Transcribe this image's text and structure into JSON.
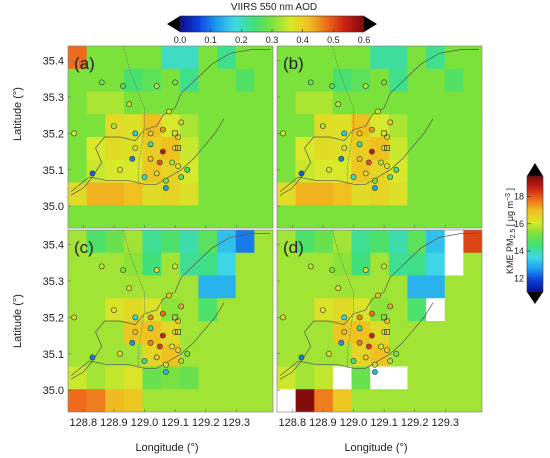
{
  "chart_data": {
    "type": "heatmap",
    "top_colorbar": {
      "title": "VIIRS 550 nm AOD",
      "ticks": [
        "0.0",
        "0.1",
        "0.2",
        "0.3",
        "0.4",
        "0.5",
        "0.6"
      ],
      "range": [
        0.0,
        0.6
      ],
      "colors": [
        "#0a0f8c",
        "#0b3fe0",
        "#1e9cf0",
        "#3fd9e6",
        "#3fe07a",
        "#7be23c",
        "#d8e82a",
        "#f0c020",
        "#ee6a1c",
        "#c81e12",
        "#7a0b0b"
      ]
    },
    "right_colorbar": {
      "title": "KME PM",
      "subscript": "2.5",
      "unit": " [ μg m",
      "superscript": "−3",
      "unit_end": " ]",
      "ticks": [
        "12",
        "14",
        "16",
        "18"
      ],
      "range": [
        11,
        19.5
      ],
      "colors": [
        "#0a0f8c",
        "#0b3fe0",
        "#1e9cf0",
        "#3fd9e6",
        "#3fe07a",
        "#7be23c",
        "#d8e82a",
        "#f0c020",
        "#ee6a1c",
        "#c81e12",
        "#7a0b0b"
      ]
    },
    "xlabel": "Longitude (°)",
    "ylabel": "Latitude (°)",
    "xticks": [
      "128.8",
      "128.9",
      "129.0",
      "129.1",
      "129.2",
      "129.3"
    ],
    "yticks": [
      "35.4",
      "35.3",
      "35.2",
      "35.1",
      "35.0"
    ],
    "xlim": [
      128.75,
      129.42
    ],
    "ylim": [
      34.94,
      35.44
    ],
    "panels": [
      {
        "label": "(a)",
        "colorbar": "aod",
        "default_value": 0.3,
        "cells": [
          [
            0,
            0,
            0.48
          ],
          [
            5,
            0,
            0.2
          ],
          [
            6,
            0,
            0.2
          ],
          [
            8,
            0,
            0.23
          ],
          [
            3,
            1,
            0.25
          ],
          [
            4,
            1,
            0.27
          ],
          [
            6,
            1,
            0.23
          ],
          [
            9,
            1,
            0.26
          ],
          [
            1,
            2,
            0.33
          ],
          [
            2,
            2,
            0.33
          ],
          [
            2,
            3,
            0.38
          ],
          [
            3,
            3,
            0.37
          ],
          [
            4,
            3,
            0.42
          ],
          [
            5,
            3,
            0.36
          ],
          [
            6,
            3,
            0.33
          ],
          [
            1,
            4,
            0.36
          ],
          [
            2,
            4,
            0.38
          ],
          [
            3,
            4,
            0.37
          ],
          [
            4,
            4,
            0.4
          ],
          [
            5,
            4,
            0.42
          ],
          [
            6,
            4,
            0.35
          ],
          [
            1,
            5,
            0.35
          ],
          [
            2,
            5,
            0.36
          ],
          [
            3,
            5,
            0.36
          ],
          [
            4,
            5,
            0.41
          ],
          [
            5,
            5,
            0.39
          ],
          [
            6,
            5,
            0.36
          ],
          [
            0,
            6,
            0.38
          ],
          [
            1,
            6,
            0.43
          ],
          [
            2,
            6,
            0.43
          ],
          [
            3,
            6,
            0.42
          ],
          [
            4,
            6,
            0.38
          ],
          [
            5,
            6,
            0.39
          ],
          [
            6,
            6,
            0.37
          ]
        ]
      },
      {
        "label": "(b)",
        "colorbar": "aod",
        "default_value": 0.3,
        "cells": [
          [
            5,
            0,
            0.22
          ],
          [
            6,
            0,
            0.22
          ],
          [
            8,
            0,
            0.23
          ],
          [
            3,
            1,
            0.25
          ],
          [
            4,
            1,
            0.27
          ],
          [
            6,
            1,
            0.23
          ],
          [
            9,
            1,
            0.26
          ],
          [
            1,
            2,
            0.33
          ],
          [
            2,
            2,
            0.33
          ],
          [
            2,
            3,
            0.38
          ],
          [
            3,
            3,
            0.37
          ],
          [
            4,
            3,
            0.42
          ],
          [
            5,
            3,
            0.36
          ],
          [
            6,
            3,
            0.33
          ],
          [
            1,
            4,
            0.36
          ],
          [
            2,
            4,
            0.38
          ],
          [
            3,
            4,
            0.37
          ],
          [
            4,
            4,
            0.4
          ],
          [
            5,
            4,
            0.42
          ],
          [
            6,
            4,
            0.35
          ],
          [
            1,
            5,
            0.35
          ],
          [
            2,
            5,
            0.36
          ],
          [
            3,
            5,
            0.36
          ],
          [
            4,
            5,
            0.41
          ],
          [
            5,
            5,
            0.39
          ],
          [
            6,
            5,
            0.36
          ],
          [
            0,
            6,
            0.38
          ],
          [
            1,
            6,
            0.43
          ],
          [
            2,
            6,
            0.43
          ],
          [
            3,
            6,
            0.42
          ],
          [
            4,
            6,
            0.38
          ],
          [
            5,
            6,
            0.39
          ],
          [
            6,
            6,
            0.37
          ]
        ]
      },
      {
        "label": "(c)",
        "colorbar": "pm",
        "default_value": 15.6,
        "cells": [
          [
            1,
            0,
            14.6
          ],
          [
            2,
            0,
            15
          ],
          [
            4,
            0,
            14.2
          ],
          [
            5,
            0,
            14.6
          ],
          [
            6,
            0,
            14
          ],
          [
            7,
            0,
            14.8
          ],
          [
            8,
            0,
            13.2
          ],
          [
            9,
            0,
            12.4
          ],
          [
            3,
            1,
            15.4
          ],
          [
            4,
            1,
            14.4
          ],
          [
            6,
            1,
            14.2
          ],
          [
            7,
            1,
            14.3
          ],
          [
            8,
            1,
            13.5
          ],
          [
            7,
            2,
            13
          ],
          [
            8,
            2,
            13
          ],
          [
            2,
            3,
            16.2
          ],
          [
            3,
            3,
            16.4
          ],
          [
            4,
            3,
            16.2
          ],
          [
            5,
            3,
            15.4
          ],
          [
            7,
            3,
            14.6
          ],
          [
            3,
            4,
            16.8
          ],
          [
            4,
            4,
            16.9
          ],
          [
            5,
            4,
            16.4
          ],
          [
            4,
            5,
            16.5
          ],
          [
            5,
            5,
            16.9
          ],
          [
            0,
            6,
            16
          ],
          [
            2,
            6,
            15.9
          ],
          [
            3,
            6,
            16.2
          ],
          [
            4,
            6,
            15
          ],
          [
            5,
            6,
            15.2
          ],
          [
            6,
            6,
            15
          ],
          [
            0,
            7,
            17.8
          ],
          [
            1,
            7,
            17.6
          ],
          [
            2,
            7,
            17
          ],
          [
            3,
            7,
            16.8
          ]
        ]
      },
      {
        "label": "(d)",
        "colorbar": "pm",
        "default_value": 15.6,
        "cells": [
          [
            1,
            0,
            14.6
          ],
          [
            2,
            0,
            15
          ],
          [
            4,
            0,
            14.2
          ],
          [
            5,
            0,
            14.6
          ],
          [
            6,
            0,
            14
          ],
          [
            7,
            0,
            14.8
          ],
          [
            8,
            0,
            13.2
          ],
          [
            9,
            0,
            12.4
          ],
          [
            10,
            0,
            18.2
          ],
          [
            3,
            1,
            15.4
          ],
          [
            4,
            1,
            14.4
          ],
          [
            6,
            1,
            14.2
          ],
          [
            7,
            1,
            14.3
          ],
          [
            8,
            1,
            13.5
          ],
          [
            7,
            2,
            13
          ],
          [
            8,
            2,
            13
          ],
          [
            2,
            3,
            16.2
          ],
          [
            3,
            3,
            16.4
          ],
          [
            4,
            3,
            16.2
          ],
          [
            5,
            3,
            15.4
          ],
          [
            7,
            3,
            14.6
          ],
          [
            3,
            4,
            16.8
          ],
          [
            4,
            4,
            16.9
          ],
          [
            5,
            4,
            16.4
          ],
          [
            4,
            5,
            16.5
          ],
          [
            5,
            5,
            16.9
          ],
          [
            0,
            6,
            16
          ],
          [
            2,
            6,
            15.9
          ],
          [
            3,
            6,
            16.2
          ],
          [
            4,
            6,
            15
          ],
          [
            5,
            6,
            15.2
          ],
          [
            6,
            6,
            15
          ],
          [
            0,
            7,
            17.2
          ],
          [
            1,
            7,
            19.4
          ],
          [
            2,
            7,
            17.6
          ],
          [
            3,
            7,
            16.8
          ]
        ],
        "blank_cells": [
          [
            9,
            0
          ],
          [
            9,
            1
          ],
          [
            8,
            3
          ],
          [
            0,
            7
          ],
          [
            5,
            6
          ],
          [
            6,
            6
          ],
          [
            3,
            6
          ]
        ]
      }
    ],
    "stations": [
      [
        128.86,
        35.34,
        0.28,
        15.8
      ],
      [
        128.93,
        35.33,
        0.26,
        15.2
      ],
      [
        129.04,
        35.33,
        0.33,
        16.4
      ],
      [
        129.1,
        35.34,
        0.3,
        16
      ],
      [
        128.95,
        35.28,
        0.34,
        16.3
      ],
      [
        129.08,
        35.26,
        0.37,
        16.8
      ],
      [
        129.12,
        35.23,
        0.4,
        17.2
      ],
      [
        128.77,
        35.2,
        0.36,
        16.5
      ],
      [
        128.9,
        35.22,
        0.33,
        16.2
      ],
      [
        128.97,
        35.2,
        0.16,
        13.5
      ],
      [
        129.02,
        35.2,
        0.41,
        17.5
      ],
      [
        129.06,
        35.21,
        0.45,
        17.8
      ],
      [
        129.11,
        35.19,
        0.38,
        16.7
      ],
      [
        128.97,
        35.16,
        0.38,
        17
      ],
      [
        129.02,
        35.17,
        0.22,
        14.4
      ],
      [
        129.06,
        35.15,
        0.55,
        18.6
      ],
      [
        129.1,
        35.16,
        0.35,
        16.4
      ],
      [
        128.96,
        35.13,
        0.1,
        12.6
      ],
      [
        129.02,
        35.13,
        0.42,
        17.6
      ],
      [
        129.05,
        35.12,
        0.5,
        18.3
      ],
      [
        129.09,
        35.12,
        0.33,
        16
      ],
      [
        129.11,
        35.11,
        0.37,
        16.6
      ],
      [
        129.14,
        35.1,
        0.24,
        15.2
      ],
      [
        128.83,
        35.09,
        0.08,
        12.4
      ],
      [
        128.92,
        35.1,
        0.36,
        16.4
      ],
      [
        129.0,
        35.08,
        0.2,
        14.2
      ],
      [
        129.04,
        35.09,
        0.38,
        16.8
      ],
      [
        129.07,
        35.07,
        0.3,
        15.9
      ],
      [
        129.12,
        35.08,
        0.26,
        15.6
      ],
      [
        129.07,
        35.05,
        0.12,
        13
      ]
    ],
    "square_stations": [
      [
        129.1,
        35.2
      ],
      [
        129.11,
        35.16
      ]
    ],
    "coastline": [
      [
        128.76,
        35.03
      ],
      [
        128.8,
        35.05
      ],
      [
        128.83,
        35.08
      ],
      [
        128.86,
        35.12
      ],
      [
        128.84,
        35.16
      ],
      [
        128.87,
        35.19
      ],
      [
        128.92,
        35.19
      ],
      [
        128.97,
        35.18
      ],
      [
        129.0,
        35.21
      ],
      [
        129.04,
        35.22
      ],
      [
        129.06,
        35.25
      ],
      [
        129.1,
        35.27
      ],
      [
        129.12,
        35.31
      ],
      [
        129.17,
        35.35
      ],
      [
        129.22,
        35.39
      ],
      [
        129.28,
        35.42
      ],
      [
        129.35,
        35.43
      ],
      [
        129.41,
        35.43
      ]
    ],
    "south_coast": [
      [
        128.76,
        35.04
      ],
      [
        128.82,
        35.08
      ],
      [
        128.88,
        35.07
      ],
      [
        128.95,
        35.07
      ],
      [
        129.0,
        35.06
      ],
      [
        129.04,
        35.06
      ],
      [
        129.08,
        35.08
      ],
      [
        129.12,
        35.1
      ],
      [
        129.16,
        35.13
      ],
      [
        129.2,
        35.17
      ],
      [
        129.23,
        35.2
      ],
      [
        129.26,
        35.24
      ]
    ],
    "river": [
      [
        128.93,
        35.44
      ],
      [
        128.95,
        35.38
      ],
      [
        128.98,
        35.31
      ],
      [
        129.0,
        35.27
      ],
      [
        129.0,
        35.22
      ],
      [
        128.99,
        35.16
      ],
      [
        128.98,
        35.11
      ],
      [
        128.98,
        35.06
      ]
    ]
  }
}
